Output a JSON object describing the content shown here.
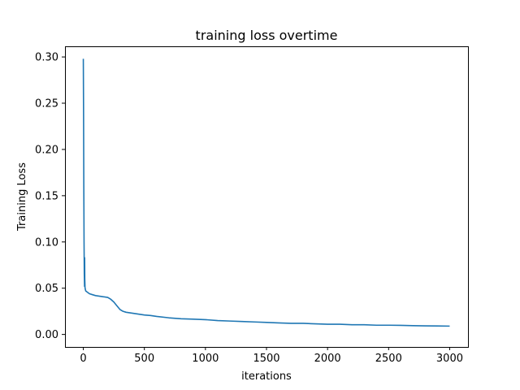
{
  "chart_data": {
    "type": "line",
    "title": "training loss overtime",
    "xlabel": "iterations",
    "ylabel": "Training Loss",
    "xlim": [
      -150,
      3150
    ],
    "ylim": [
      -0.0135,
      0.3115
    ],
    "xticks": [
      0,
      500,
      1000,
      1500,
      2000,
      2500,
      3000
    ],
    "xtick_labels": [
      "0",
      "500",
      "1000",
      "1500",
      "2000",
      "2500",
      "3000"
    ],
    "yticks": [
      0.0,
      0.05,
      0.1,
      0.15,
      0.2,
      0.25,
      0.3
    ],
    "ytick_labels": [
      "0.00",
      "0.05",
      "0.10",
      "0.15",
      "0.20",
      "0.25",
      "0.30"
    ],
    "grid": false,
    "legend": "none",
    "series": [
      {
        "color": "#1f77b4",
        "x": [
          0,
          2,
          4,
          6,
          8,
          10,
          11,
          12,
          14,
          16,
          20,
          30,
          50,
          75,
          100,
          150,
          200,
          225,
          250,
          275,
          300,
          325,
          350,
          400,
          450,
          500,
          550,
          600,
          700,
          800,
          900,
          1000,
          1100,
          1200,
          1300,
          1400,
          1500,
          1600,
          1700,
          1800,
          1900,
          2000,
          2100,
          2200,
          2300,
          2400,
          2500,
          2600,
          2700,
          2800,
          2900,
          3000
        ],
        "y": [
          0.298,
          0.24,
          0.16,
          0.1,
          0.065,
          0.052,
          0.083,
          0.06,
          0.051,
          0.049,
          0.047,
          0.046,
          0.044,
          0.043,
          0.042,
          0.041,
          0.04,
          0.038,
          0.035,
          0.031,
          0.027,
          0.025,
          0.024,
          0.023,
          0.022,
          0.021,
          0.0205,
          0.0195,
          0.018,
          0.017,
          0.0165,
          0.016,
          0.015,
          0.0145,
          0.014,
          0.0135,
          0.013,
          0.0125,
          0.012,
          0.012,
          0.0115,
          0.011,
          0.011,
          0.0105,
          0.0105,
          0.01,
          0.01,
          0.0098,
          0.0095,
          0.0093,
          0.0092,
          0.009
        ]
      }
    ]
  }
}
